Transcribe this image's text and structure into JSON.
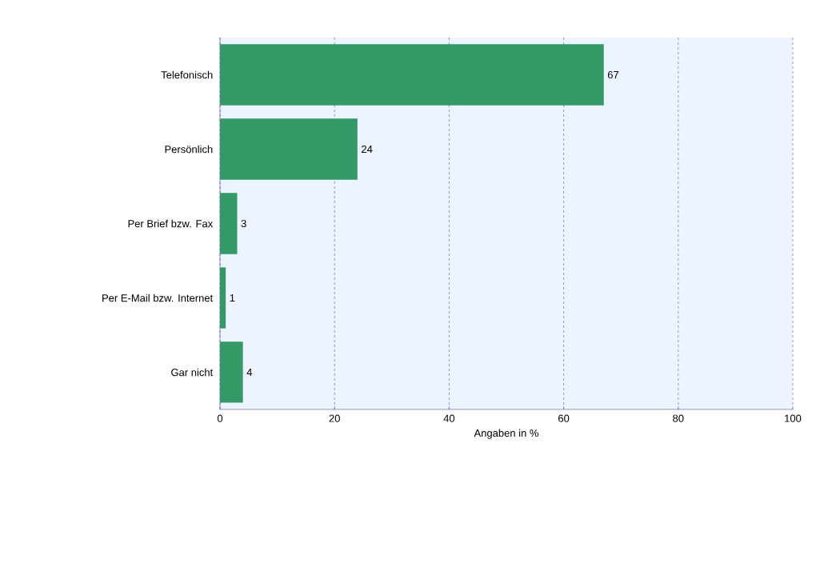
{
  "chart_data": {
    "type": "bar",
    "orientation": "horizontal",
    "categories": [
      "Telefonisch",
      "Persönlich",
      "Per Brief bzw. Fax",
      "Per E-Mail bzw. Internet",
      "Gar nicht"
    ],
    "values": [
      67,
      24,
      3,
      1,
      4
    ],
    "color": "#339966",
    "xlabel": "Angaben in %",
    "xlim": [
      0,
      100
    ],
    "xticks": [
      0,
      20,
      40,
      60,
      80,
      100
    ],
    "grid": "x",
    "data_labels": true
  }
}
